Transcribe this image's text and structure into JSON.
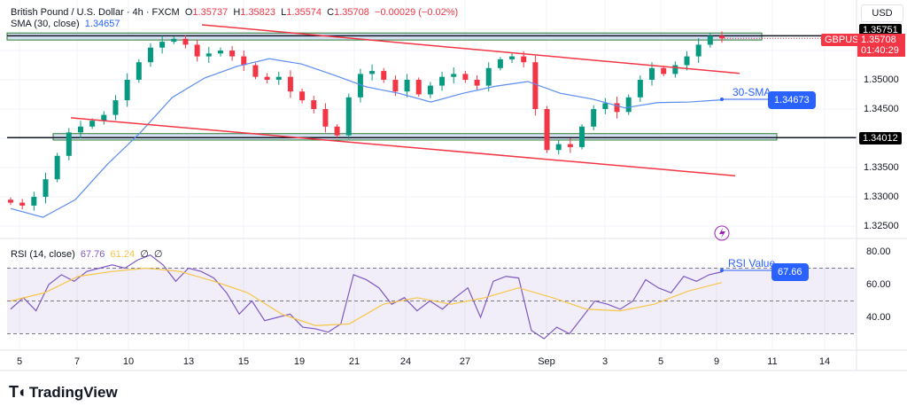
{
  "header": {
    "symbol": "British Pound / U.S. Dollar · 4h · FXCM",
    "open_label": "O",
    "open": "1.35737",
    "high_label": "H",
    "high": "1.35823",
    "low_label": "L",
    "low": "1.35574",
    "close_label": "C",
    "close": "1.35708",
    "change": "−0.00029 (−0.02%)",
    "sma_label": "SMA (30, close)",
    "sma_value": "1.34657"
  },
  "rsi_header": {
    "label": "RSI (14, close)",
    "value": "67.76",
    "ma_value": "61.24",
    "hidden1": "∅",
    "hidden2": "∅"
  },
  "currency": "USD",
  "price_axis": {
    "ticks": [
      "1.35000",
      "1.34500",
      "1.33500",
      "1.33000",
      "1.32500"
    ],
    "resistance": "1.35751",
    "support": "1.34012",
    "symbol_tag": "GBPUSD",
    "last_price": "1.35708",
    "countdown": "01:40:29"
  },
  "rsi_axis": {
    "ticks": [
      "80.00",
      "60.00",
      "40.00"
    ]
  },
  "annotations": {
    "sma_label": "30-SMA",
    "sma_value": "1.34673",
    "rsi_label": "RSI Value",
    "rsi_value": "67.66"
  },
  "time_axis": [
    "5",
    "7",
    "10",
    "13",
    "15",
    "19",
    "21",
    "24",
    "27",
    "Sep",
    "3",
    "5",
    "9",
    "11",
    "14"
  ],
  "brand": "TradingView",
  "colors": {
    "up": "#089981",
    "down": "#f23645",
    "sma": "#5b8def",
    "rsi": "#7e57c2",
    "rsi_ma": "#f7c548",
    "channel": "#f23645",
    "annotation": "#2962ff"
  },
  "chart_data": {
    "type": "candlestick",
    "symbol": "GBPUSD",
    "interval": "4h",
    "ylim": [
      1.3235,
      1.361
    ],
    "closes": [
      1.329,
      1.3285,
      1.33,
      1.333,
      1.337,
      1.341,
      1.342,
      1.343,
      1.344,
      1.3465,
      1.35,
      1.353,
      1.3555,
      1.3565,
      1.357,
      1.356,
      1.354,
      1.3545,
      1.355,
      1.354,
      1.3525,
      1.3505,
      1.35,
      1.3505,
      1.348,
      1.3465,
      1.345,
      1.342,
      1.3405,
      1.347,
      1.351,
      1.3515,
      1.35,
      1.348,
      1.35,
      1.3475,
      1.349,
      1.3505,
      1.351,
      1.35,
      1.349,
      1.352,
      1.3535,
      1.354,
      1.353,
      1.345,
      1.338,
      1.339,
      1.3385,
      1.342,
      1.345,
      1.346,
      1.3445,
      1.347,
      1.35,
      1.352,
      1.351,
      1.3525,
      1.354,
      1.356,
      1.3575,
      1.35708
    ],
    "sma30": [
      1.328,
      1.3265,
      1.3295,
      1.3356,
      1.3409,
      1.347,
      1.3503,
      1.3523,
      1.3536,
      1.3527,
      1.3508,
      1.3488,
      1.3477,
      1.3462,
      1.3477,
      1.3489,
      1.3497,
      1.3477,
      1.3467,
      1.3452,
      1.3461,
      1.3462,
      1.34657
    ],
    "rsi": [
      45,
      52,
      44,
      60,
      66,
      62,
      68,
      70,
      72,
      70,
      75,
      78,
      72,
      62,
      70,
      68,
      64,
      55,
      42,
      50,
      38,
      40,
      42,
      34,
      33,
      31,
      36,
      66,
      63,
      58,
      48,
      52,
      44,
      50,
      45,
      52,
      58,
      40,
      62,
      65,
      64,
      32,
      27,
      34,
      30,
      40,
      50,
      48,
      45,
      50,
      63,
      58,
      55,
      65,
      62,
      66,
      67.76
    ],
    "rsi_ma": [
      50,
      55,
      65,
      68,
      70,
      68,
      62,
      55,
      42,
      35,
      36,
      48,
      52,
      48,
      52,
      58,
      52,
      45,
      44,
      48,
      56,
      61.24
    ],
    "rsi_levels": [
      70,
      50,
      30
    ],
    "resistance": 1.35751,
    "support": 1.34012,
    "upper_channel": [
      1.3594,
      1.3511
    ],
    "lower_channel": [
      1.3435,
      1.3336
    ],
    "resistance_zone": [
      1.3568,
      1.358
    ],
    "support_zone": [
      1.3397,
      1.3408
    ]
  }
}
